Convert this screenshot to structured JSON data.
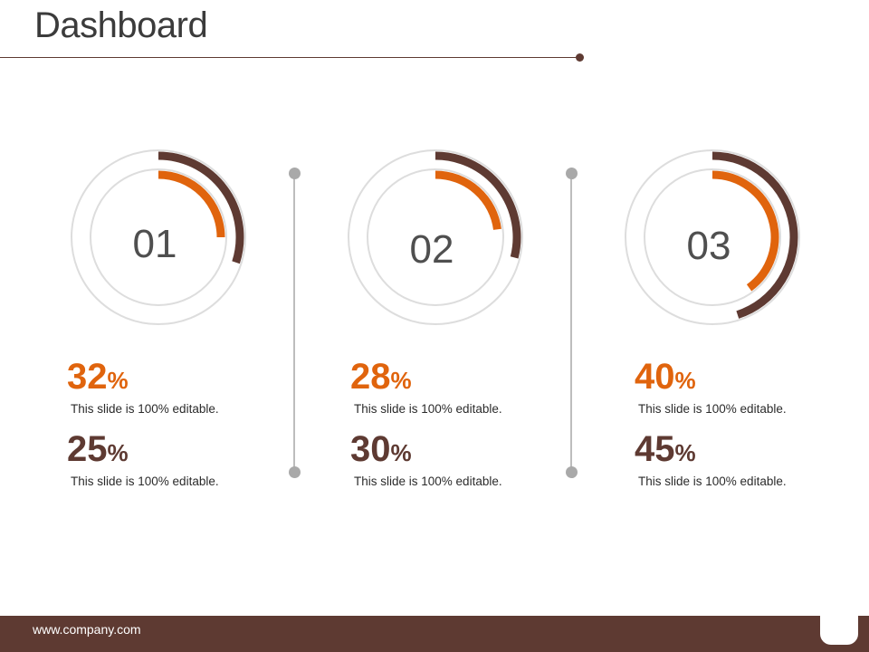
{
  "header": {
    "title": "Dashboard"
  },
  "colors": {
    "outer_arc": "#5e3a32",
    "inner_arc": "#e0640d",
    "track": "#dddddd",
    "accent_text": "#e0640d",
    "dark_text": "#5e3a32"
  },
  "chart_data": [
    {
      "type": "donut",
      "label": "01",
      "inner_value": 25,
      "outer_value": 30
    },
    {
      "type": "donut",
      "label": "02",
      "inner_value": 23,
      "outer_value": 29
    },
    {
      "type": "donut",
      "label": "03",
      "inner_value": 40,
      "outer_value": 45
    }
  ],
  "stats": [
    {
      "value": "32",
      "unit": "%",
      "caption": "This slide is 100% editable."
    },
    {
      "value": "25",
      "unit": "%",
      "caption": "This slide is 100% editable."
    },
    {
      "value": "28",
      "unit": "%",
      "caption": "This slide is 100% editable."
    },
    {
      "value": "30",
      "unit": "%",
      "caption": "This slide is 100% editable."
    },
    {
      "value": "40",
      "unit": "%",
      "caption": "This slide is 100% editable."
    },
    {
      "value": "45",
      "unit": "%",
      "caption": "This slide is 100% editable."
    }
  ],
  "footer": {
    "url": "www.company.com"
  }
}
